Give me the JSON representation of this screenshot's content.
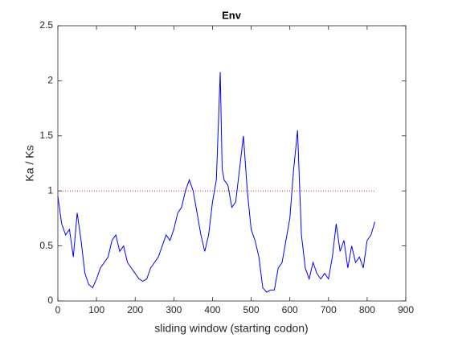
{
  "chart_data": {
    "type": "line",
    "title": "Env",
    "xlabel": "sliding window (starting codon)",
    "ylabel": "Ka / Ks",
    "x": [
      0,
      10,
      20,
      30,
      40,
      50,
      60,
      70,
      80,
      90,
      100,
      110,
      120,
      130,
      140,
      150,
      160,
      170,
      180,
      190,
      200,
      210,
      220,
      230,
      240,
      250,
      260,
      270,
      280,
      290,
      300,
      310,
      320,
      330,
      340,
      350,
      360,
      370,
      380,
      390,
      400,
      410,
      420,
      425,
      430,
      440,
      450,
      460,
      470,
      480,
      490,
      500,
      510,
      520,
      530,
      540,
      550,
      560,
      570,
      580,
      590,
      600,
      610,
      620,
      630,
      640,
      650,
      660,
      670,
      680,
      690,
      700,
      710,
      720,
      730,
      740,
      750,
      760,
      770,
      780,
      790,
      800,
      810,
      820
    ],
    "series": [
      {
        "name": "Ka/Ks",
        "color": "#0000ff",
        "values": [
          0.95,
          0.7,
          0.6,
          0.65,
          0.4,
          0.8,
          0.55,
          0.25,
          0.15,
          0.12,
          0.2,
          0.3,
          0.35,
          0.4,
          0.55,
          0.6,
          0.45,
          0.5,
          0.35,
          0.3,
          0.25,
          0.2,
          0.18,
          0.2,
          0.3,
          0.35,
          0.4,
          0.5,
          0.6,
          0.55,
          0.65,
          0.8,
          0.85,
          1.0,
          1.1,
          1.0,
          0.8,
          0.6,
          0.45,
          0.6,
          0.9,
          1.1,
          2.08,
          1.2,
          1.1,
          1.05,
          0.85,
          0.9,
          1.2,
          1.5,
          1.0,
          0.65,
          0.55,
          0.4,
          0.12,
          0.08,
          0.1,
          0.1,
          0.3,
          0.35,
          0.55,
          0.75,
          1.2,
          1.55,
          0.6,
          0.3,
          0.2,
          0.35,
          0.25,
          0.2,
          0.25,
          0.2,
          0.4,
          0.7,
          0.45,
          0.55,
          0.3,
          0.5,
          0.35,
          0.4,
          0.3,
          0.55,
          0.6,
          0.72
        ]
      }
    ],
    "reference_line": {
      "y": 1,
      "x": [
        0,
        820
      ],
      "color": "#d9281e"
    },
    "xlim": [
      0,
      900
    ],
    "xticks": [
      0,
      100,
      200,
      300,
      400,
      500,
      600,
      700,
      800,
      900
    ],
    "ylim": [
      0,
      2.5
    ],
    "yticks": [
      0,
      0.5,
      1,
      1.5,
      2,
      2.5
    ]
  }
}
